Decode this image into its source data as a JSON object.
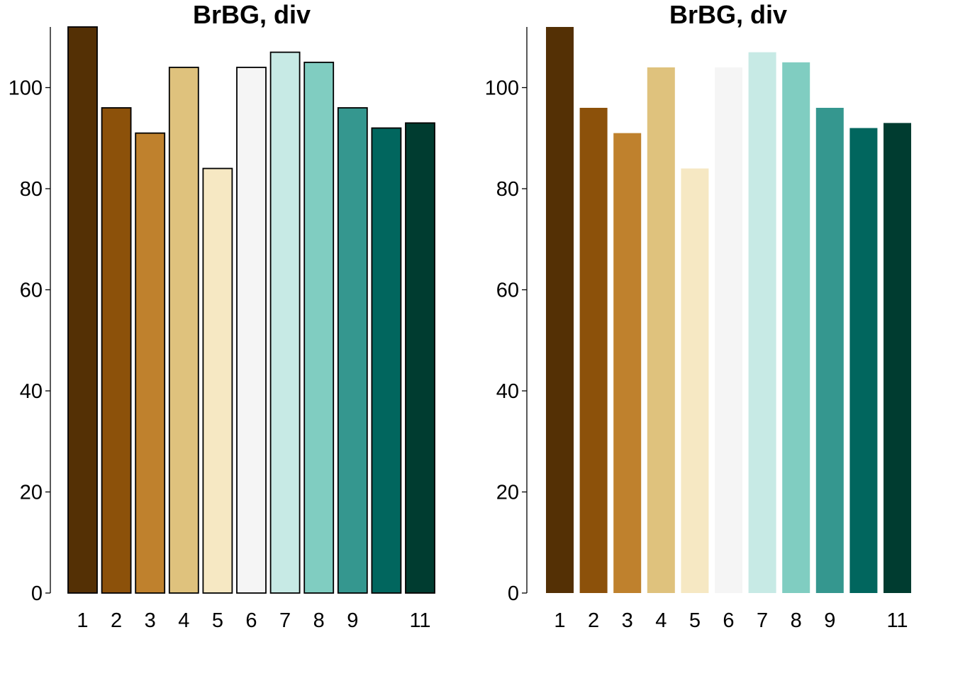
{
  "chart_data": [
    {
      "type": "bar",
      "title": "BrBG, div",
      "xlabel": "",
      "ylabel": "",
      "categories": [
        "1",
        "2",
        "3",
        "4",
        "5",
        "6",
        "7",
        "8",
        "9",
        "",
        "11"
      ],
      "values": [
        112,
        96,
        91,
        104,
        84,
        104,
        107,
        105,
        96,
        92,
        93
      ],
      "colors": [
        "#543005",
        "#8C510A",
        "#BF812D",
        "#DFC27D",
        "#F6E8C3",
        "#F5F5F5",
        "#C7EAE5",
        "#80CDC1",
        "#35978F",
        "#01665E",
        "#003C30"
      ],
      "bar_outline": true,
      "y_ticks": [
        "0",
        "20",
        "40",
        "60",
        "80",
        "100"
      ],
      "ylim": [
        0,
        112
      ],
      "grid": false
    },
    {
      "type": "bar",
      "title": "BrBG, div",
      "xlabel": "",
      "ylabel": "",
      "categories": [
        "1",
        "2",
        "3",
        "4",
        "5",
        "6",
        "7",
        "8",
        "9",
        "",
        "11"
      ],
      "values": [
        112,
        96,
        91,
        104,
        84,
        104,
        107,
        105,
        96,
        92,
        93
      ],
      "colors": [
        "#543005",
        "#8C510A",
        "#BF812D",
        "#DFC27D",
        "#F6E8C3",
        "#F5F5F5",
        "#C7EAE5",
        "#80CDC1",
        "#35978F",
        "#01665E",
        "#003C30"
      ],
      "bar_outline": false,
      "y_ticks": [
        "0",
        "20",
        "40",
        "60",
        "80",
        "100"
      ],
      "ylim": [
        0,
        112
      ],
      "grid": false
    }
  ]
}
